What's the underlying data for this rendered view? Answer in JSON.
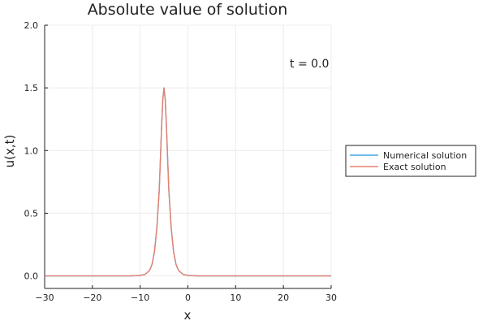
{
  "chart_data": {
    "type": "line",
    "title": "Absolute value of solution",
    "xlabel": "x",
    "ylabel": "u(x,t)",
    "xlim": [
      -30,
      30
    ],
    "ylim": [
      -0.1,
      2.0
    ],
    "xticks": [
      -30,
      -20,
      -10,
      0,
      10,
      20,
      30
    ],
    "xtick_labels": [
      "−30",
      "−20",
      "−10",
      "0",
      "10",
      "20",
      "30"
    ],
    "yticks": [
      0.0,
      0.5,
      1.0,
      1.5,
      2.0
    ],
    "ytick_labels": [
      "0.0",
      "0.5",
      "1.0",
      "1.5",
      "2.0"
    ],
    "grid": true,
    "legend_position": "outside-right",
    "annotation": "t = 0.0",
    "x": [
      -30,
      -20,
      -15,
      -12,
      -10,
      -9,
      -8,
      -7.5,
      -7,
      -6.5,
      -6,
      -5.75,
      -5.5,
      -5.25,
      -5,
      -4.75,
      -4.5,
      -4.25,
      -4,
      -3.5,
      -3,
      -2.5,
      -2,
      -1,
      0,
      2,
      5,
      10,
      20,
      30
    ],
    "series": [
      {
        "name": "Numerical solution",
        "color": "#3da8e0",
        "values": [
          0.0,
          0.0,
          0.0,
          0.0,
          0.004,
          0.011,
          0.045,
          0.094,
          0.193,
          0.383,
          0.689,
          0.941,
          1.198,
          1.41,
          1.5,
          1.41,
          1.198,
          0.941,
          0.689,
          0.383,
          0.193,
          0.094,
          0.045,
          0.011,
          0.004,
          0.0,
          0.0,
          0.0,
          0.0,
          0.0
        ]
      },
      {
        "name": "Exact solution",
        "color": "#e8806f",
        "values": [
          0.0,
          0.0,
          0.0,
          0.0,
          0.004,
          0.011,
          0.045,
          0.094,
          0.193,
          0.383,
          0.689,
          0.941,
          1.198,
          1.41,
          1.5,
          1.41,
          1.198,
          0.941,
          0.689,
          0.383,
          0.193,
          0.094,
          0.045,
          0.011,
          0.004,
          0.0,
          0.0,
          0.0,
          0.0,
          0.0
        ]
      }
    ]
  }
}
